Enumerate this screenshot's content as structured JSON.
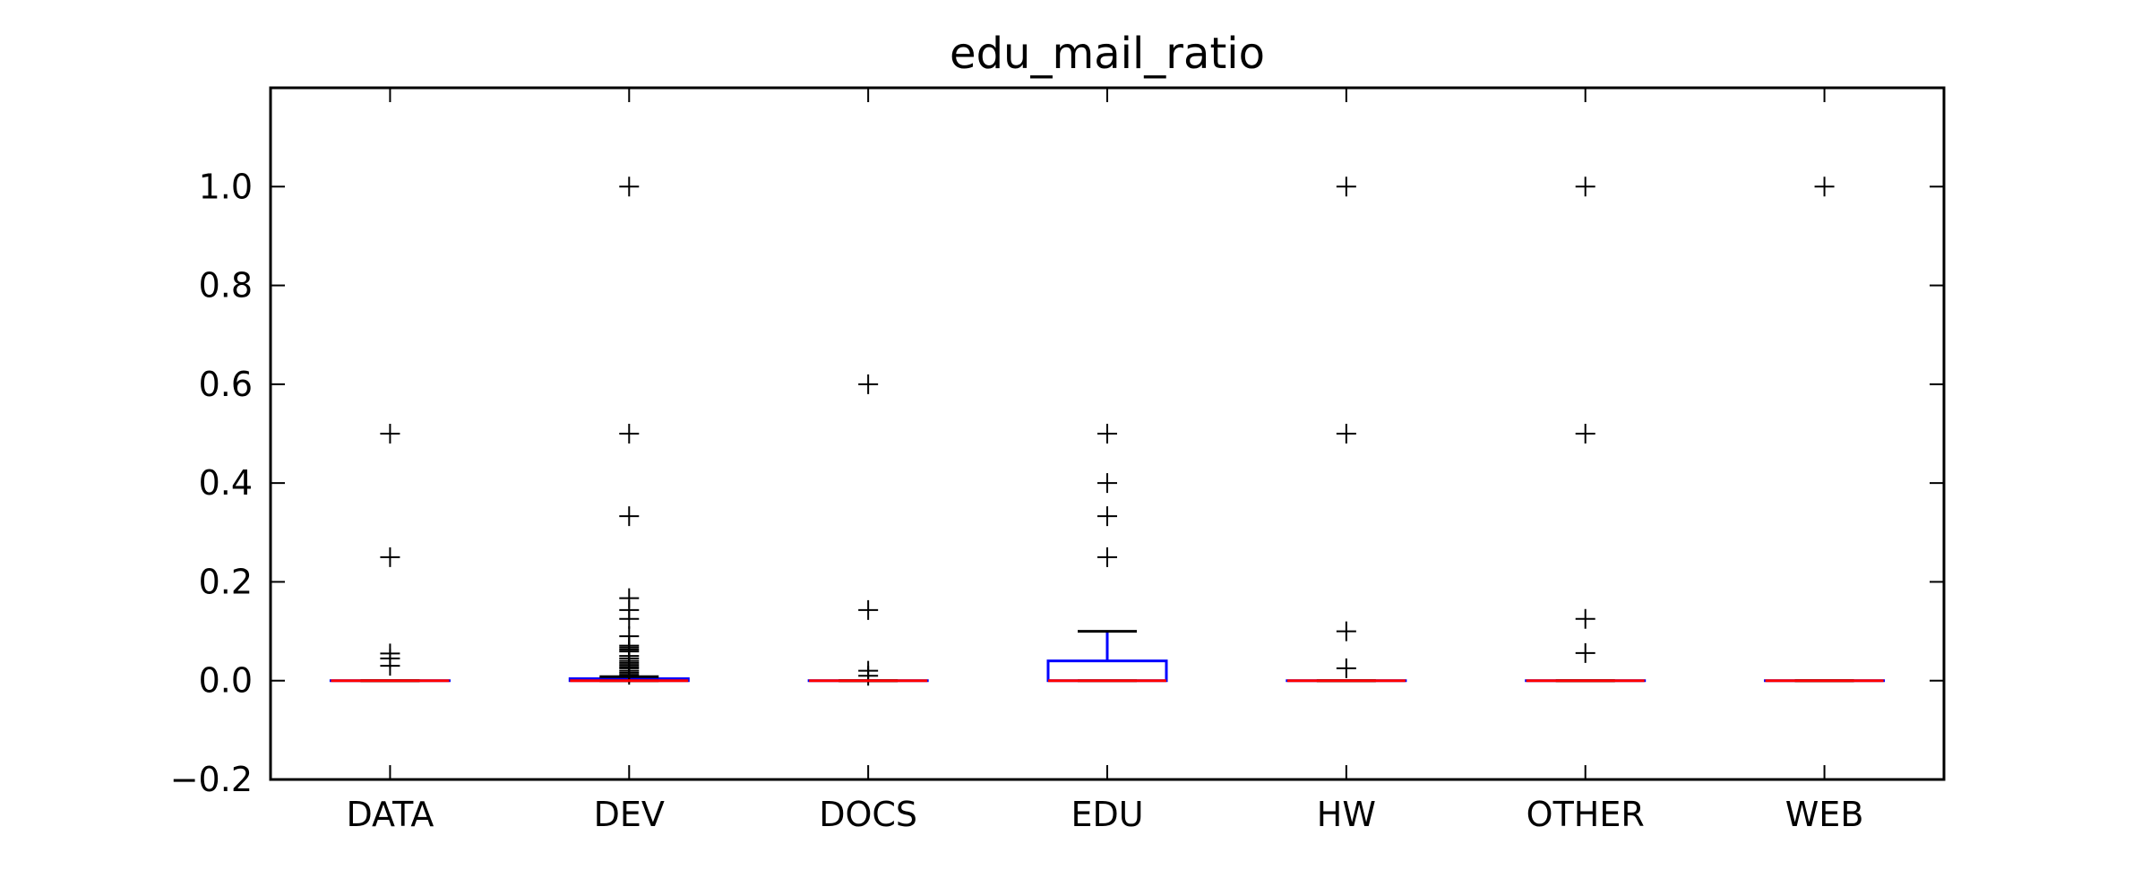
{
  "chart_data": {
    "type": "box",
    "title": "edu_mail_ratio",
    "xlabel": "",
    "ylabel": "",
    "categories": [
      "DATA",
      "DEV",
      "DOCS",
      "EDU",
      "HW",
      "OTHER",
      "WEB"
    ],
    "ylim": [
      -0.2,
      1.2
    ],
    "yticks": [
      -0.2,
      0.0,
      0.2,
      0.4,
      0.6,
      0.8,
      1.0
    ],
    "ytick_labels": [
      "−0.2",
      "0.0",
      "0.2",
      "0.4",
      "0.6",
      "0.8",
      "1.0"
    ],
    "grid": false,
    "boxes": [
      {
        "category": "DATA",
        "whisker_low": 0.0,
        "q1": 0.0,
        "median": 0.0,
        "q3": 0.0,
        "whisker_high": 0.0,
        "fliers": [
          0.5,
          0.25,
          0.055,
          0.045,
          0.03
        ]
      },
      {
        "category": "DEV",
        "whisker_low": 0.0,
        "q1": 0.0,
        "median": 0.0,
        "q3": 0.004,
        "whisker_high": 0.008,
        "fliers": [
          1.0,
          0.5,
          0.333,
          0.167,
          0.143,
          0.125,
          0.09,
          0.071,
          0.067,
          0.063,
          0.059,
          0.05,
          0.045,
          0.04,
          0.036,
          0.032,
          0.028,
          0.025,
          0.02,
          0.016,
          0.012
        ]
      },
      {
        "category": "DOCS",
        "whisker_low": 0.0,
        "q1": 0.0,
        "median": 0.0,
        "q3": 0.0,
        "whisker_high": 0.0,
        "fliers": [
          0.6,
          0.143,
          0.02,
          0.01
        ]
      },
      {
        "category": "EDU",
        "whisker_low": 0.0,
        "q1": 0.0,
        "median": 0.0,
        "q3": 0.04,
        "whisker_high": 0.1,
        "fliers": [
          0.5,
          0.4,
          0.333,
          0.25
        ]
      },
      {
        "category": "HW",
        "whisker_low": 0.0,
        "q1": 0.0,
        "median": 0.0,
        "q3": 0.0,
        "whisker_high": 0.0,
        "fliers": [
          1.0,
          0.5,
          0.1,
          0.025
        ]
      },
      {
        "category": "OTHER",
        "whisker_low": 0.0,
        "q1": 0.0,
        "median": 0.0,
        "q3": 0.0,
        "whisker_high": 0.0,
        "fliers": [
          1.0,
          0.5,
          0.125,
          0.056
        ]
      },
      {
        "category": "WEB",
        "whisker_low": 0.0,
        "q1": 0.0,
        "median": 0.0,
        "q3": 0.0,
        "whisker_high": 0.0,
        "fliers": [
          1.0
        ]
      }
    ],
    "colors": {
      "box": "#0000ff",
      "median": "#ff0000",
      "whisker": "#0000ff",
      "cap": "#000000",
      "flier": "#000000"
    }
  }
}
